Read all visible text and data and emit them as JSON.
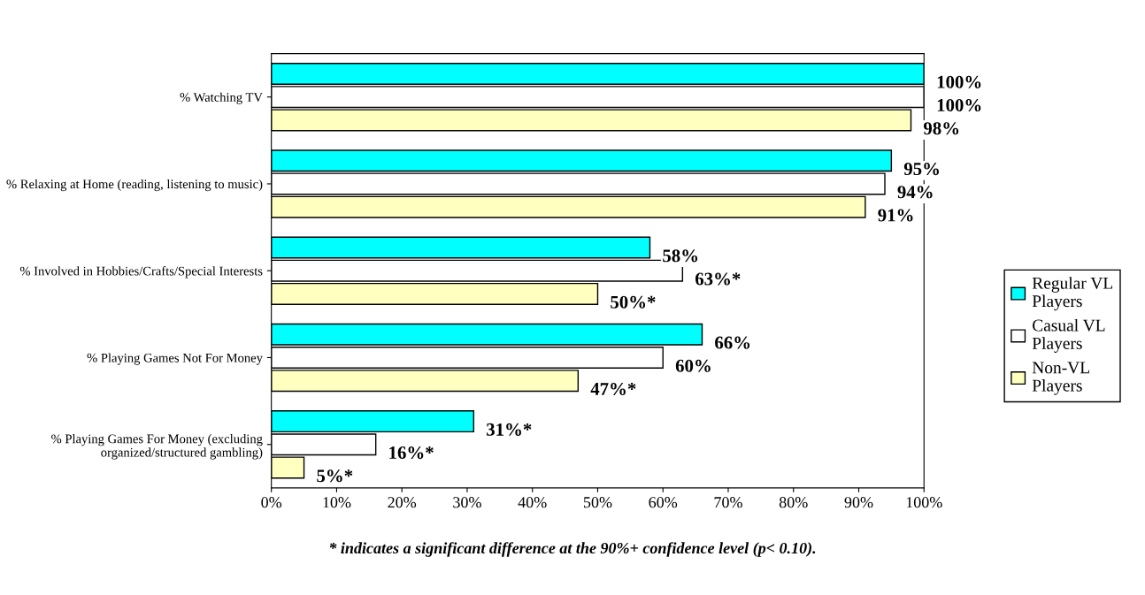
{
  "chart_data": {
    "type": "bar",
    "orientation": "horizontal",
    "categories": [
      "% Watching TV",
      "% Relaxing at Home (reading, listening to music)",
      "% Involved in Hobbies/Crafts/Special Interests",
      "% Playing Games Not For Money",
      "% Playing Games For Money (excluding organized/structured gambling)"
    ],
    "series": [
      {
        "name": "Regular VL Players",
        "color": "#00ffff",
        "values": [
          100,
          95,
          58,
          66,
          31
        ],
        "value_labels": [
          "100%",
          "95%",
          "58%",
          "66%",
          "31%*"
        ]
      },
      {
        "name": "Casual VL Players",
        "color": "#ffffff",
        "values": [
          100,
          94,
          63,
          60,
          16
        ],
        "value_labels": [
          "100%",
          "94%",
          "63%*",
          "60%",
          "16%*"
        ]
      },
      {
        "name": "Non-VL Players",
        "color": "#ffffc0",
        "values": [
          98,
          91,
          50,
          47,
          5
        ],
        "value_labels": [
          "98%",
          "91%",
          "50%*",
          "47%*",
          "5%*"
        ]
      }
    ],
    "xlim": [
      0,
      100
    ],
    "xticks": [
      {
        "value": 0,
        "label": "0%"
      },
      {
        "value": 10,
        "label": "10%"
      },
      {
        "value": 20,
        "label": "20%"
      },
      {
        "value": 30,
        "label": "30%"
      },
      {
        "value": 40,
        "label": "40%"
      },
      {
        "value": 50,
        "label": "50%"
      },
      {
        "value": 60,
        "label": "60%"
      },
      {
        "value": 70,
        "label": "70%"
      },
      {
        "value": 80,
        "label": "80%"
      },
      {
        "value": 90,
        "label": "90%"
      },
      {
        "value": 100,
        "label": "100%"
      }
    ],
    "grid": false,
    "legend": "right",
    "annotations": [
      "* indicates a significant difference at the 90%+ confidence level (p< 0.10)."
    ]
  }
}
